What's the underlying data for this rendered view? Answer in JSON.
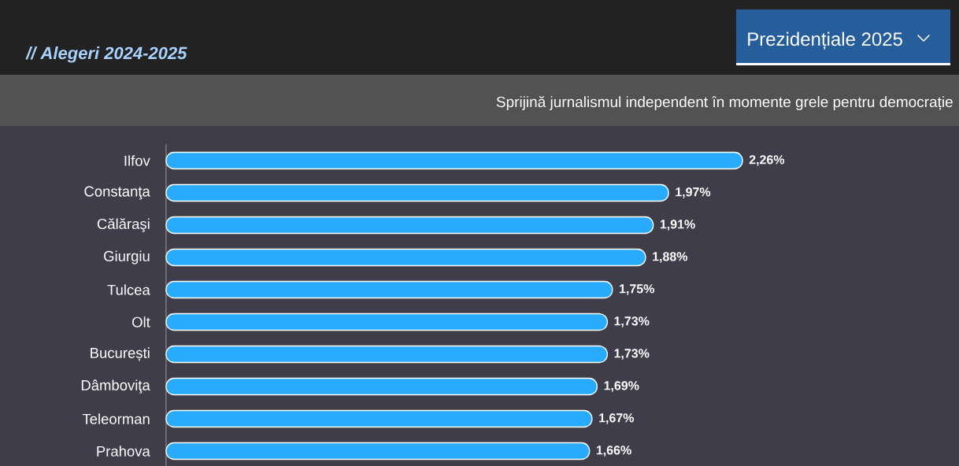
{
  "chart_data": {
    "type": "bar",
    "orientation": "horizontal",
    "title": "Prezidențiale 2025",
    "subtitle": "// Alegeri 2024-2025",
    "annotations": [
      "Sprijină jurnalismul independent în momente grele pentru democrație"
    ],
    "categories": [
      "Ilfov",
      "Constanţa",
      "Călăraşi",
      "Giurgiu",
      "Tulcea",
      "Olt",
      "București",
      "Dâmboviţa",
      "Teleorman",
      "Prahova"
    ],
    "values": [
      2.26,
      1.97,
      1.91,
      1.88,
      1.75,
      1.73,
      1.73,
      1.69,
      1.67,
      1.66
    ],
    "value_labels": [
      "2,26%",
      "1,97%",
      "1,91%",
      "1,88%",
      "1,75%",
      "1,73%",
      "1,73%",
      "1,69%",
      "1,67%",
      "1,66%"
    ],
    "color": "#29abfd"
  }
}
